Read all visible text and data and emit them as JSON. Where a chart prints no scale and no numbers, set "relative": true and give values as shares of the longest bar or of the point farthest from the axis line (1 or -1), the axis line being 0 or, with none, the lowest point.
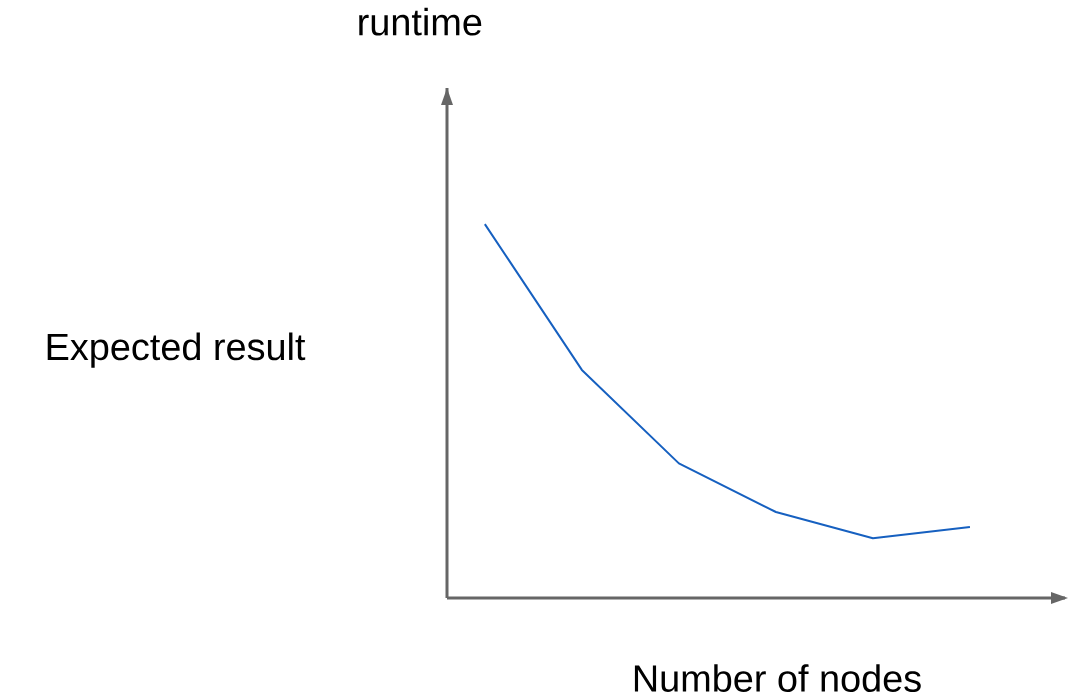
{
  "chart_data": {
    "type": "line",
    "relative": true,
    "xlabel": "Number of nodes",
    "annotations": [
      "runtime",
      "Expected result"
    ],
    "categories": [
      null,
      null,
      null,
      null,
      null,
      null
    ],
    "series": [
      {
        "color": "#1660c0",
        "values": [
          1,
          0.61,
          0.36,
          0.23,
          0.16,
          0.19
        ]
      }
    ],
    "marker": "none",
    "line_style": "solid"
  }
}
